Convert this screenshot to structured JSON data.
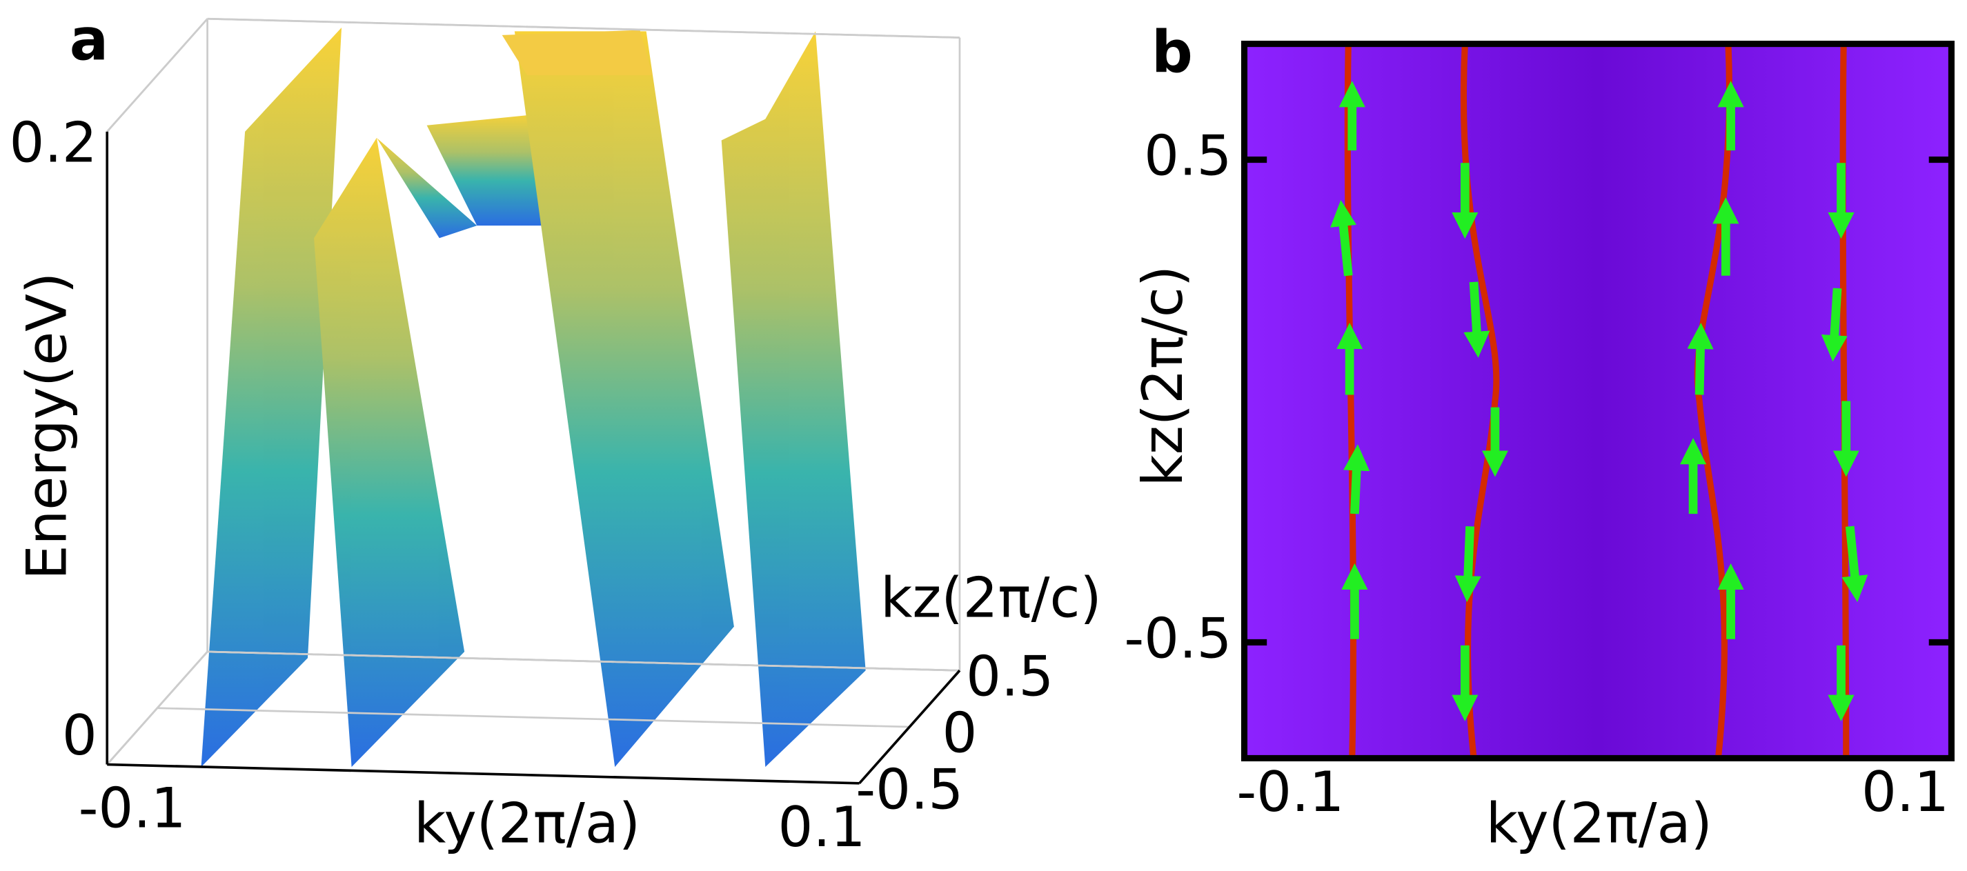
{
  "chart_data": [
    {
      "type": "surface3d",
      "panel": "a",
      "xlabel": "ky(2π/a)",
      "ylabel": "kz(2π/c)",
      "zlabel": "Energy(eV)",
      "xlim": [
        -0.1,
        0.1
      ],
      "xticks": [
        -0.1,
        0.1
      ],
      "ylim": [
        -0.5,
        0.5
      ],
      "yticks": [
        -0.5,
        0,
        0.5
      ],
      "zlim": [
        0,
        0.2
      ],
      "zticks": [
        0,
        0.2
      ]
    },
    {
      "type": "heatmap",
      "panel": "b",
      "xlabel": "ky(2π/a)",
      "ylabel": "kz(2π/c)",
      "xlim": [
        -0.115,
        0.115
      ],
      "xticks": [
        -0.1,
        0.1
      ],
      "ylim": [
        -0.74,
        0.74
      ],
      "yticks": [
        -0.5,
        0.5
      ]
    }
  ]
}
